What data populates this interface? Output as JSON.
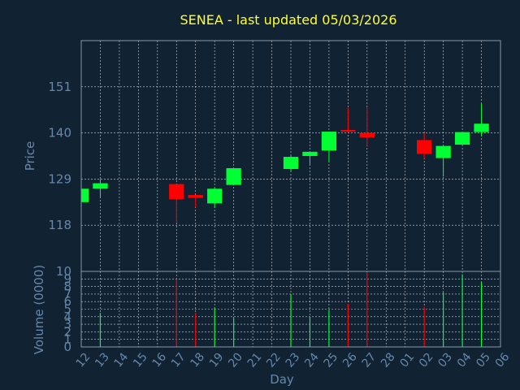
{
  "chart_data": {
    "type": "candlestick",
    "title": "SENEA - last updated 05/03/2026",
    "xlabel": "Day",
    "price_panel": {
      "ylabel": "Price",
      "ylim": [
        107,
        162
      ],
      "yticks": [
        "118",
        "129",
        "140",
        "151"
      ],
      "ytick_values": [
        118,
        129,
        140,
        151
      ],
      "grid": true
    },
    "volume_panel": {
      "ylabel": "Volume (0000)",
      "ylim": [
        0,
        10
      ],
      "yticks": [
        "0",
        "1",
        "2",
        "3",
        "4",
        "5",
        "6",
        "7",
        "8",
        "9",
        "10"
      ],
      "grid": true
    },
    "xticks": [
      "12",
      "13",
      "14",
      "15",
      "16",
      "17",
      "18",
      "19",
      "20",
      "21",
      "22",
      "23",
      "24",
      "25",
      "26",
      "27",
      "28",
      "01",
      "02",
      "03",
      "04",
      "05",
      "06"
    ],
    "candles": [
      {
        "day": "12",
        "open": 123.5,
        "high": 126.7,
        "low": 123.5,
        "close": 126.7
      },
      {
        "day": "13",
        "open": 126.7,
        "high": 129.0,
        "low": 124.5,
        "close": 128.0
      },
      {
        "day": "17",
        "open": 127.8,
        "high": 127.8,
        "low": 118.7,
        "close": 124.2
      },
      {
        "day": "18",
        "open": 125.2,
        "high": 125.2,
        "low": 122.3,
        "close": 124.5
      },
      {
        "day": "19",
        "open": 123.2,
        "high": 127.0,
        "low": 122.1,
        "close": 126.7
      },
      {
        "day": "20",
        "open": 127.6,
        "high": 131.6,
        "low": 127.6,
        "close": 131.6
      },
      {
        "day": "23",
        "open": 131.4,
        "high": 134.6,
        "low": 130.8,
        "close": 134.3
      },
      {
        "day": "24",
        "open": 134.5,
        "high": 135.5,
        "low": 132.3,
        "close": 135.5
      },
      {
        "day": "25",
        "open": 135.8,
        "high": 140.3,
        "low": 133.0,
        "close": 140.3
      },
      {
        "day": "26",
        "open": 140.7,
        "high": 146.0,
        "low": 140.0,
        "close": 140.3
      },
      {
        "day": "27",
        "open": 140.0,
        "high": 146.2,
        "low": 137.0,
        "close": 138.9
      },
      {
        "day": "02",
        "open": 138.3,
        "high": 140.0,
        "low": 133.9,
        "close": 135.0
      },
      {
        "day": "03",
        "open": 134.0,
        "high": 136.9,
        "low": 129.6,
        "close": 136.9
      },
      {
        "day": "04",
        "open": 137.2,
        "high": 140.2,
        "low": 137.2,
        "close": 140.2
      },
      {
        "day": "05",
        "open": 140.2,
        "high": 147.0,
        "low": 139.2,
        "close": 142.2
      }
    ],
    "volume": [
      {
        "day": "13",
        "value": 4.5,
        "direction": "up"
      },
      {
        "day": "17",
        "value": 9.0,
        "direction": "down"
      },
      {
        "day": "18",
        "value": 4.5,
        "direction": "down"
      },
      {
        "day": "19",
        "value": 5.2,
        "direction": "up"
      },
      {
        "day": "20",
        "value": 3.8,
        "direction": "up"
      },
      {
        "day": "23",
        "value": 7.0,
        "direction": "up"
      },
      {
        "day": "24",
        "value": 4.0,
        "direction": "up"
      },
      {
        "day": "25",
        "value": 4.9,
        "direction": "up"
      },
      {
        "day": "26",
        "value": 5.7,
        "direction": "down"
      },
      {
        "day": "27",
        "value": 9.9,
        "direction": "down"
      },
      {
        "day": "02",
        "value": 5.3,
        "direction": "down"
      },
      {
        "day": "03",
        "value": 7.2,
        "direction": "up"
      },
      {
        "day": "04",
        "value": 9.6,
        "direction": "up"
      },
      {
        "day": "05",
        "value": 8.6,
        "direction": "up"
      }
    ]
  },
  "colors": {
    "background": "#112233",
    "plot_border": "#8899aa",
    "grid": "#ffffff",
    "title": "#ffff33",
    "axis_text": "#6688aa",
    "up": "#00ff33",
    "down": "#ff0000"
  }
}
